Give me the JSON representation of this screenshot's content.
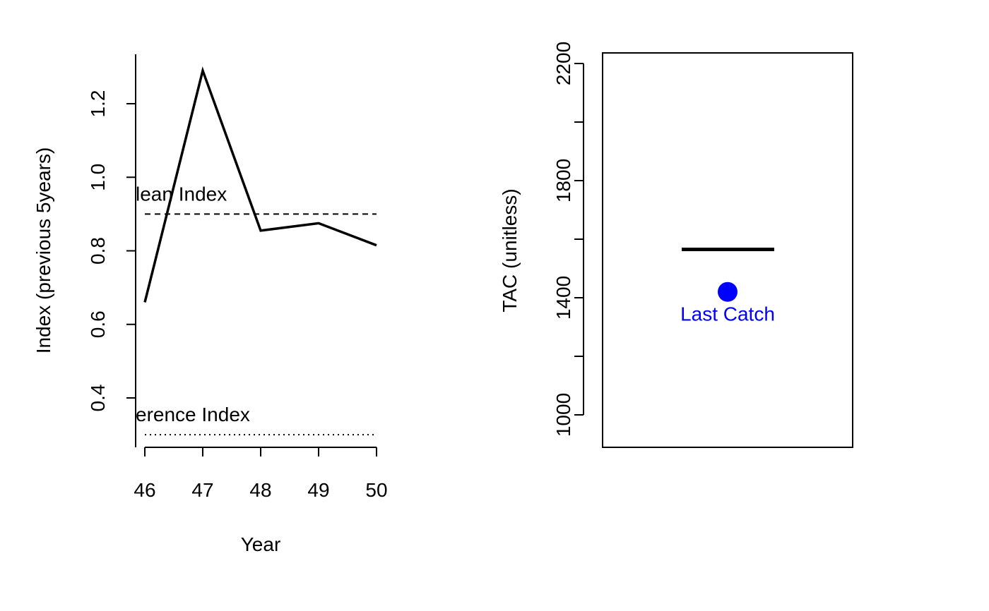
{
  "chart_data": [
    {
      "type": "line",
      "xlabel": "Year",
      "ylabel": "Index (previous 5years)",
      "xlim": [
        46,
        50
      ],
      "ylim": [
        0.4,
        1.2
      ],
      "x_ticks": [
        "46",
        "47",
        "48",
        "49",
        "50"
      ],
      "y_ticks": [
        "0.4",
        "0.6",
        "0.8",
        "1.0",
        "1.2"
      ],
      "series": [
        {
          "x": [
            46,
            47,
            48,
            49,
            50
          ],
          "values": [
            0.66,
            1.29,
            0.855,
            0.875,
            0.815
          ]
        }
      ],
      "reference_lines": [
        {
          "label": "lean Index",
          "value": 0.9,
          "style": "dashed"
        },
        {
          "label": "erence Index",
          "value": 0.3,
          "style": "dotted"
        }
      ]
    },
    {
      "type": "scatter",
      "xlabel": "",
      "ylabel": "TAC (unitless)",
      "ylim": [
        1000,
        2200
      ],
      "y_ticks": [
        "1000",
        "1400",
        "1800",
        "2200"
      ],
      "tac_value": 1565,
      "points": [
        {
          "label": "Last Catch",
          "value": 1420,
          "color": "#0000ff"
        }
      ]
    }
  ]
}
